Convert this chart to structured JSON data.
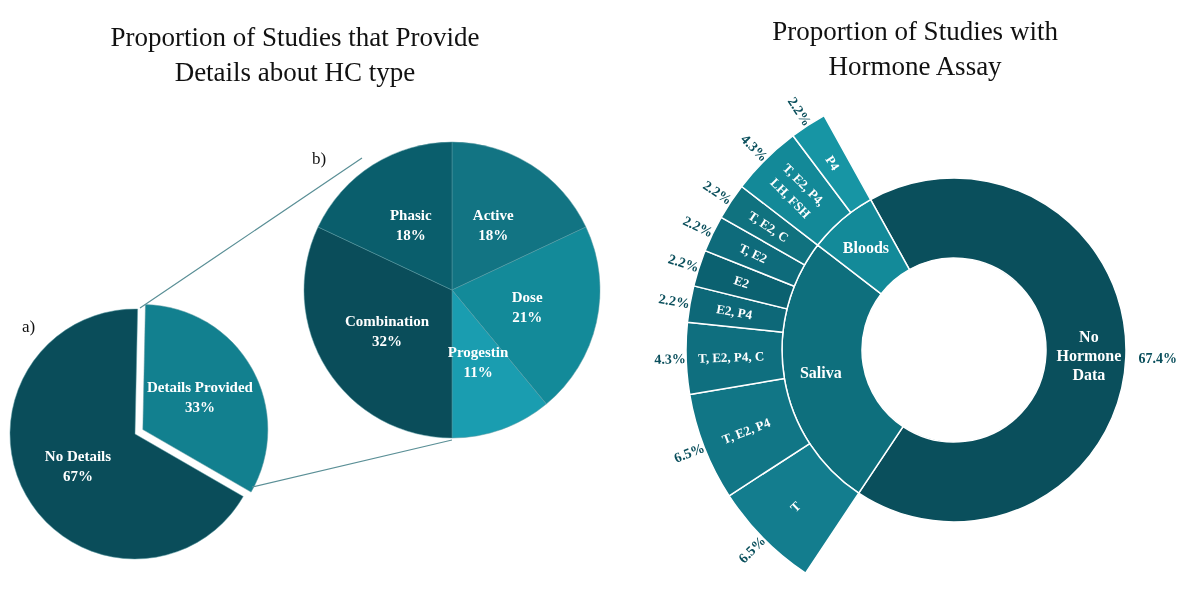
{
  "chart_data": [
    {
      "type": "pie",
      "title": "Proportion of Studies that Provide\nDetails about HC type",
      "categories": [
        "No Details",
        "Details Provided"
      ],
      "values": [
        67,
        33
      ],
      "colors": [
        "#0a4d5a",
        "#12808f"
      ],
      "value_labels": [
        "67%",
        "33%"
      ],
      "annotations": [
        "a)"
      ]
    },
    {
      "type": "pie",
      "categories": [
        "Active",
        "Dose",
        "Progestin",
        "Combination",
        "Phasic"
      ],
      "values": [
        18,
        21,
        11,
        32,
        18
      ],
      "colors": [
        "#127483",
        "#138a99",
        "#1a9db0",
        "#0a4d5a",
        "#0a5e6c"
      ],
      "value_labels": [
        "18%",
        "21%",
        "11%",
        "32%",
        "18%"
      ],
      "annotations": [
        "b)"
      ]
    },
    {
      "type": "donut",
      "title": "Proportion of Studies with\nHormone Assay",
      "categories": [
        "No\nHormone\nData",
        "Saliva",
        "Bloods"
      ],
      "values": [
        67.4,
        26.1,
        6.5
      ],
      "colors": [
        "#0a4f5c",
        "#0e6f7d",
        "#138a99"
      ],
      "value_labels": [
        "67.4%",
        null,
        null
      ]
    },
    {
      "type": "other",
      "categories": [
        "T",
        "T, E2, P4",
        "T, E2, P4, C",
        "E2, P4",
        "E2",
        "T, E2",
        "T, E2, C",
        "T, E2, P4,\nLH, FSH",
        "P4"
      ],
      "values": [
        6.5,
        6.5,
        4.3,
        2.2,
        2.2,
        2.2,
        2.2,
        4.3,
        2.2
      ],
      "colors": [
        "#137d8e",
        "#117686",
        "#0f6f7f",
        "#0d6878",
        "#0b6170",
        "#0e6b7b",
        "#10727f",
        "#138998",
        "#1795a4"
      ],
      "value_labels": [
        "6.5%",
        "6.5%",
        "4.3%",
        "2.2%",
        "2.2%",
        "2.2%",
        "2.2%",
        "4.3%",
        "2.2%"
      ]
    }
  ]
}
